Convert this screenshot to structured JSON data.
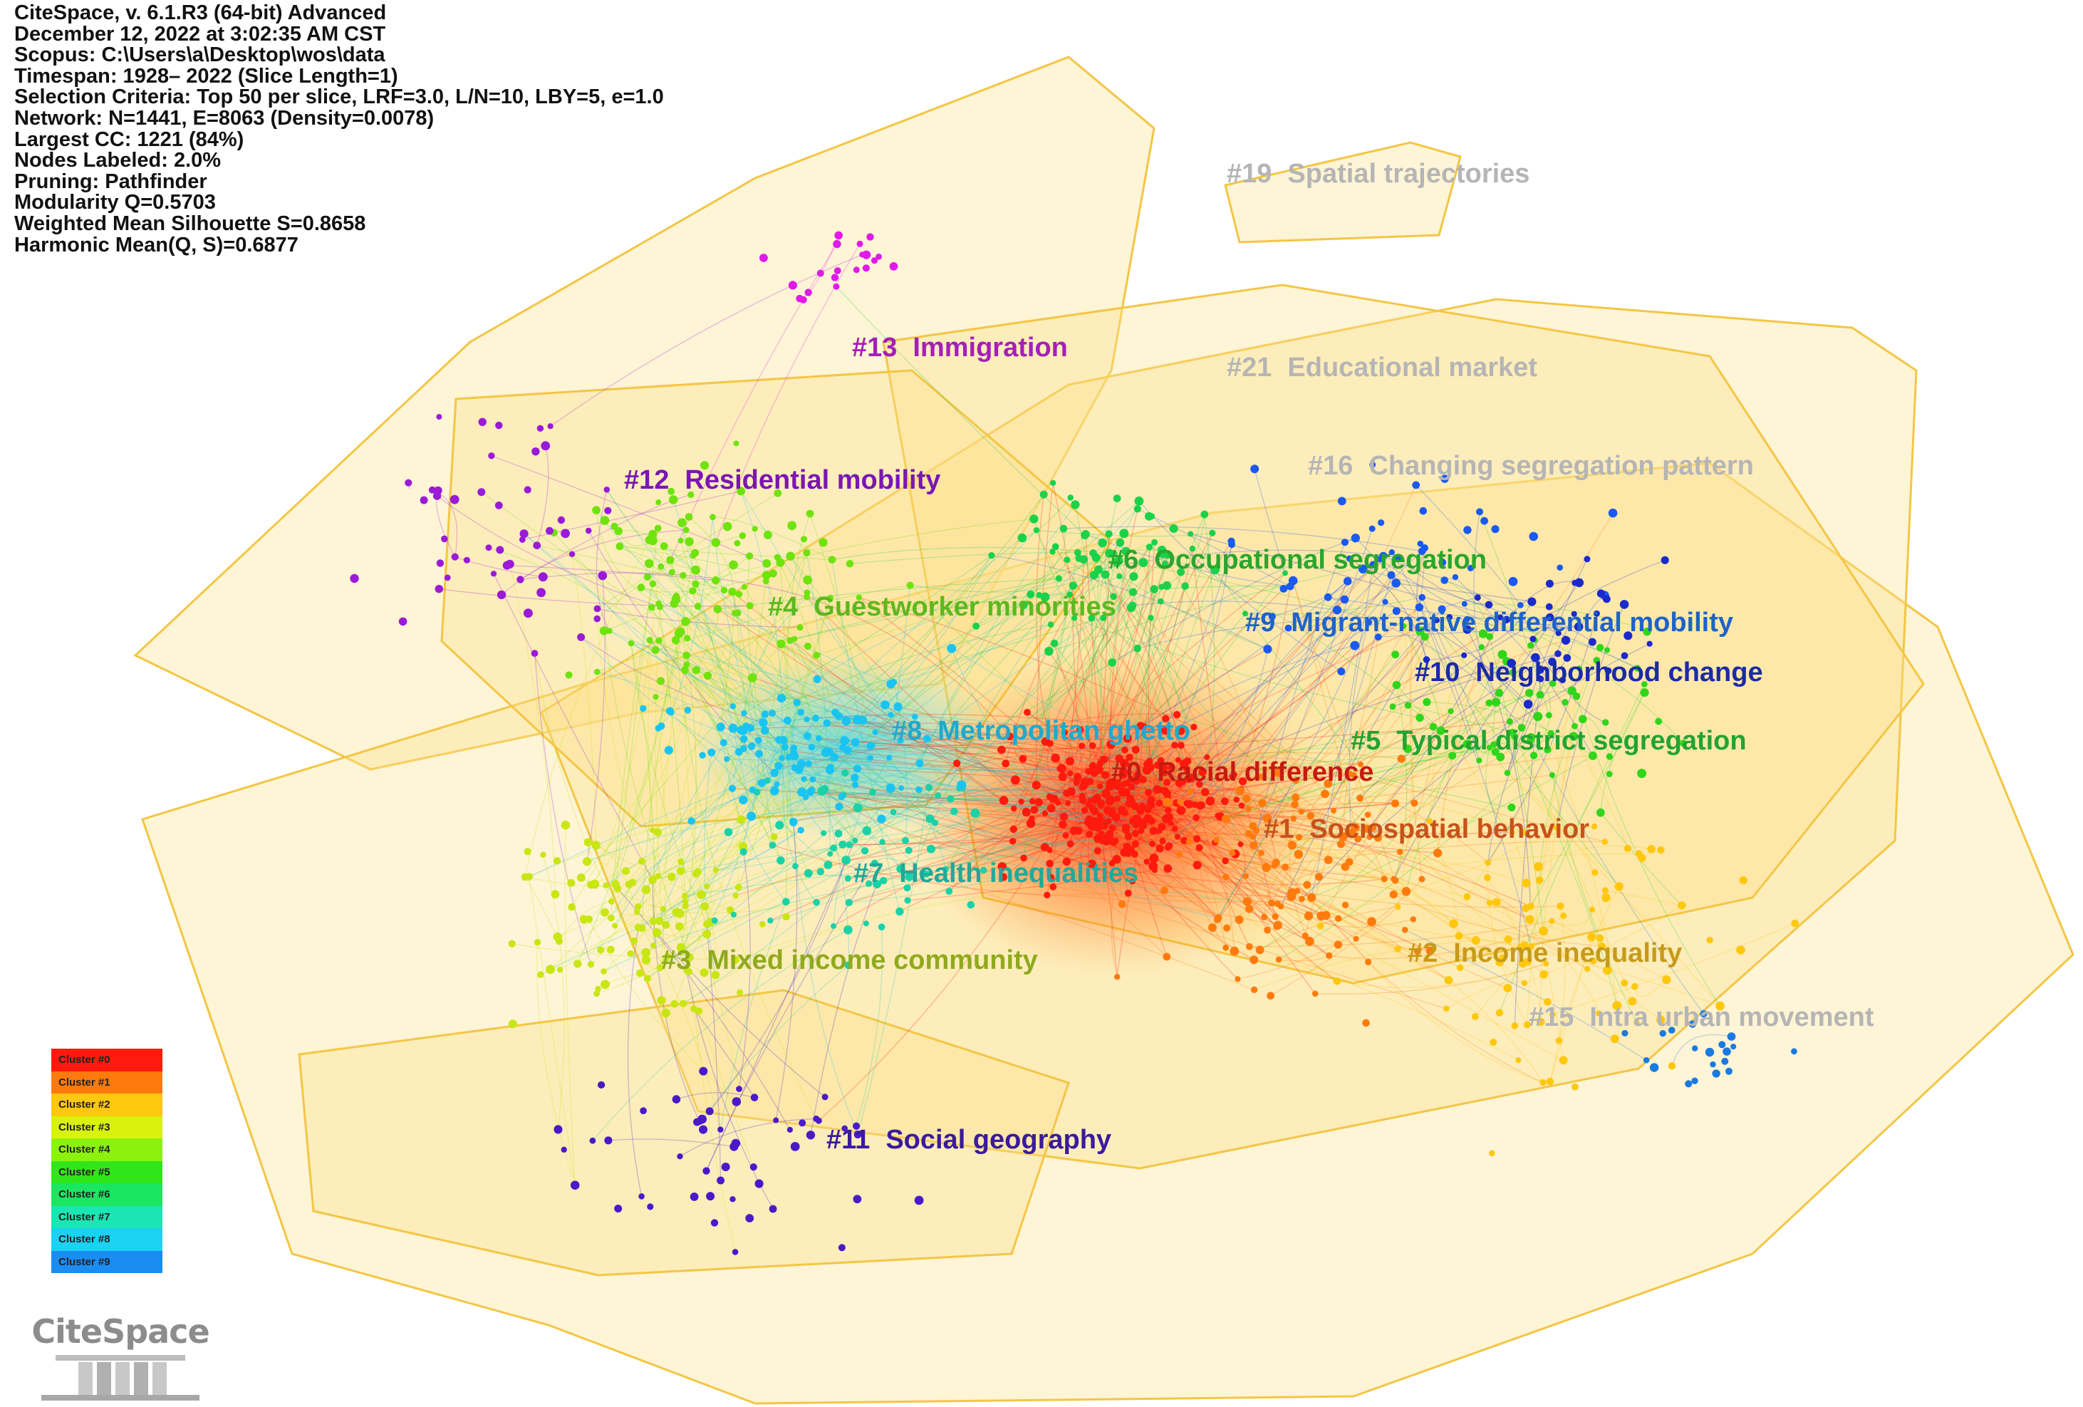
{
  "header_lines": [
    "CiteSpace, v. 6.1.R3 (64-bit) Advanced",
    "December 12, 2022 at 3:02:35 AM CST",
    "Scopus: C:\\Users\\a\\Desktop\\wos\\data",
    "Timespan: 1928– 2022 (Slice Length=1)",
    "Selection Criteria: Top 50 per slice, LRF=3.0, L/N=10, LBY=5, e=1.0",
    "Network: N=1441, E=8063 (Density=0.0078)",
    "Largest CC: 1221 (84%)",
    "Nodes Labeled: 2.0%",
    "Pruning: Pathfinder",
    "Modularity Q=0.5703",
    "Weighted Mean Silhouette S=0.8658",
    "Harmonic Mean(Q, S)=0.6877"
  ],
  "cluster_labels": [
    {
      "id": "#19",
      "label": "Spatial trajectories",
      "color": "#b5b5b5"
    },
    {
      "id": "#13",
      "label": "Immigration",
      "color": "#a51fb8"
    },
    {
      "id": "#21",
      "label": "Educational market",
      "color": "#b5b5b5"
    },
    {
      "id": "#16",
      "label": "Changing segregation pattern",
      "color": "#b5b5b5"
    },
    {
      "id": "#12",
      "label": "Residential mobility",
      "color": "#7a16b5"
    },
    {
      "id": "#6",
      "label": "Occupational segregation",
      "color": "#2aa62c"
    },
    {
      "id": "#4",
      "label": "Guestworker minorities",
      "color": "#5cb81e"
    },
    {
      "id": "#9",
      "label": "Migrant-native differential mobility",
      "color": "#1f63c8"
    },
    {
      "id": "#10",
      "label": "Neighborhood change",
      "color": "#1a2aa8"
    },
    {
      "id": "#8",
      "label": "Metropolitan ghetto",
      "color": "#1fa9cf"
    },
    {
      "id": "#5",
      "label": "Typical district segregation",
      "color": "#23a332"
    },
    {
      "id": "#0",
      "label": "Racial difference",
      "color": "#c71a10"
    },
    {
      "id": "#1",
      "label": "Sociospatial behavior",
      "color": "#c7521a"
    },
    {
      "id": "#7",
      "label": "Health inequalities",
      "color": "#20a99a"
    },
    {
      "id": "#2",
      "label": "Income inequality",
      "color": "#c79a1a"
    },
    {
      "id": "#3",
      "label": "Mixed income community",
      "color": "#8faa1c"
    },
    {
      "id": "#15",
      "label": "Intra urban movement",
      "color": "#b5b5b5"
    },
    {
      "id": "#11",
      "label": "Social geography",
      "color": "#3a1a9e"
    }
  ],
  "legend": [
    {
      "label": "Cluster #0",
      "color": "#ff1a0d"
    },
    {
      "label": "Cluster #1",
      "color": "#ff7a0d"
    },
    {
      "label": "Cluster #2",
      "color": "#ffc70d"
    },
    {
      "label": "Cluster #3",
      "color": "#d9f20d"
    },
    {
      "label": "Cluster #4",
      "color": "#8cf20d"
    },
    {
      "label": "Cluster #5",
      "color": "#30e61a"
    },
    {
      "label": "Cluster #6",
      "color": "#1ae660"
    },
    {
      "label": "Cluster #7",
      "color": "#1ae6b4"
    },
    {
      "label": "Cluster #8",
      "color": "#1ad2f2"
    },
    {
      "label": "Cluster #9",
      "color": "#1a8cf2"
    }
  ],
  "logo_text": "CiteSpace"
}
